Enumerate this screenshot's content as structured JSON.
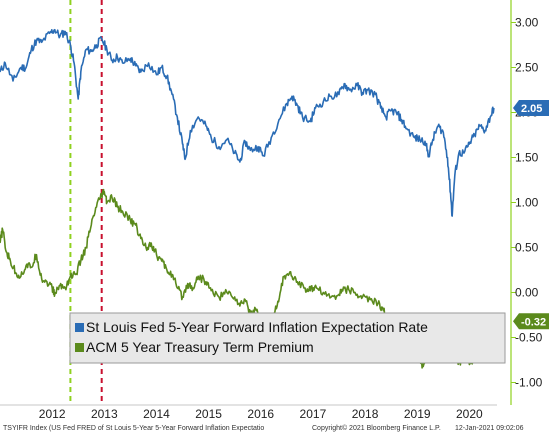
{
  "chart_data": {
    "type": "line",
    "title": "",
    "xlabel": "",
    "ylabel": "",
    "x_ticks": [
      "2012",
      "2013",
      "2014",
      "2015",
      "2016",
      "2017",
      "2018",
      "2019",
      "2020"
    ],
    "x_range": [
      2011.5,
      2021.03
    ],
    "ylim": [
      -1.25,
      3.25
    ],
    "y_ticks": [
      3.0,
      2.5,
      2.0,
      1.5,
      1.0,
      0.5,
      0.0,
      -0.5,
      -1.0
    ],
    "y_tick_labels": [
      "3.00",
      "2.50",
      "2.00",
      "1.50",
      "1.00",
      "0.50",
      "0.00",
      "-0.50",
      "-1.00"
    ],
    "y_axis_side": "right",
    "grid": false,
    "legend_position": "bottom-left",
    "vertical_markers": [
      {
        "x": 2012.85,
        "color": "#8fd11f",
        "style": "dashed"
      },
      {
        "x": 2013.45,
        "color": "#c8102e",
        "style": "dashed"
      }
    ],
    "series": [
      {
        "name": "St Louis Fed 5-Year Forward Inflation Expectation Rate",
        "color": "#2a6cb5",
        "last_value_label": "2.05",
        "points": [
          [
            2011.5,
            2.45
          ],
          [
            2011.6,
            2.55
          ],
          [
            2011.75,
            2.35
          ],
          [
            2011.9,
            2.5
          ],
          [
            2012.0,
            2.5
          ],
          [
            2012.1,
            2.7
          ],
          [
            2012.2,
            2.8
          ],
          [
            2012.3,
            2.78
          ],
          [
            2012.45,
            2.88
          ],
          [
            2012.55,
            2.92
          ],
          [
            2012.65,
            2.85
          ],
          [
            2012.75,
            2.9
          ],
          [
            2012.85,
            2.75
          ],
          [
            2012.92,
            2.55
          ],
          [
            2013.0,
            2.15
          ],
          [
            2013.05,
            2.45
          ],
          [
            2013.15,
            2.7
          ],
          [
            2013.25,
            2.68
          ],
          [
            2013.35,
            2.75
          ],
          [
            2013.45,
            2.82
          ],
          [
            2013.55,
            2.7
          ],
          [
            2013.65,
            2.58
          ],
          [
            2013.75,
            2.62
          ],
          [
            2013.85,
            2.55
          ],
          [
            2014.0,
            2.6
          ],
          [
            2014.1,
            2.52
          ],
          [
            2014.2,
            2.45
          ],
          [
            2014.35,
            2.55
          ],
          [
            2014.5,
            2.42
          ],
          [
            2014.6,
            2.5
          ],
          [
            2014.7,
            2.4
          ],
          [
            2014.8,
            2.2
          ],
          [
            2014.9,
            1.95
          ],
          [
            2015.0,
            1.65
          ],
          [
            2015.05,
            1.48
          ],
          [
            2015.15,
            1.8
          ],
          [
            2015.3,
            1.95
          ],
          [
            2015.45,
            1.85
          ],
          [
            2015.55,
            1.72
          ],
          [
            2015.7,
            1.62
          ],
          [
            2015.85,
            1.7
          ],
          [
            2016.0,
            1.55
          ],
          [
            2016.1,
            1.45
          ],
          [
            2016.2,
            1.68
          ],
          [
            2016.3,
            1.58
          ],
          [
            2016.45,
            1.62
          ],
          [
            2016.55,
            1.52
          ],
          [
            2016.7,
            1.72
          ],
          [
            2016.85,
            1.92
          ],
          [
            2017.0,
            2.1
          ],
          [
            2017.1,
            2.18
          ],
          [
            2017.2,
            2.08
          ],
          [
            2017.3,
            1.95
          ],
          [
            2017.45,
            1.9
          ],
          [
            2017.55,
            2.05
          ],
          [
            2017.7,
            2.12
          ],
          [
            2017.85,
            2.18
          ],
          [
            2018.0,
            2.2
          ],
          [
            2018.1,
            2.32
          ],
          [
            2018.2,
            2.25
          ],
          [
            2018.35,
            2.3
          ],
          [
            2018.45,
            2.22
          ],
          [
            2018.55,
            2.25
          ],
          [
            2018.7,
            2.2
          ],
          [
            2018.8,
            2.05
          ],
          [
            2018.9,
            1.95
          ],
          [
            2019.0,
            2.02
          ],
          [
            2019.1,
            2.0
          ],
          [
            2019.2,
            1.92
          ],
          [
            2019.3,
            1.82
          ],
          [
            2019.45,
            1.72
          ],
          [
            2019.55,
            1.7
          ],
          [
            2019.65,
            1.68
          ],
          [
            2019.72,
            1.52
          ],
          [
            2019.8,
            1.7
          ],
          [
            2019.9,
            1.85
          ],
          [
            2020.0,
            1.78
          ],
          [
            2020.08,
            1.5
          ],
          [
            2020.14,
            1.1
          ],
          [
            2020.17,
            0.85
          ],
          [
            2020.22,
            1.3
          ],
          [
            2020.3,
            1.55
          ],
          [
            2020.4,
            1.55
          ],
          [
            2020.5,
            1.65
          ],
          [
            2020.6,
            1.75
          ],
          [
            2020.7,
            1.85
          ],
          [
            2020.8,
            1.8
          ],
          [
            2020.9,
            1.95
          ],
          [
            2020.97,
            2.05
          ]
        ]
      },
      {
        "name": "ACM 5 Year Treasury Term Premium",
        "color": "#5b8a1c",
        "last_value_label": "-0.32",
        "points": [
          [
            2011.5,
            0.55
          ],
          [
            2011.55,
            0.7
          ],
          [
            2011.62,
            0.45
          ],
          [
            2011.7,
            0.35
          ],
          [
            2011.8,
            0.22
          ],
          [
            2011.9,
            0.18
          ],
          [
            2012.0,
            0.3
          ],
          [
            2012.1,
            0.28
          ],
          [
            2012.2,
            0.42
          ],
          [
            2012.3,
            0.15
          ],
          [
            2012.4,
            0.12
          ],
          [
            2012.5,
            0.05
          ],
          [
            2012.55,
            -0.02
          ],
          [
            2012.65,
            0.08
          ],
          [
            2012.75,
            0.05
          ],
          [
            2012.85,
            0.18
          ],
          [
            2012.95,
            0.2
          ],
          [
            2013.05,
            0.35
          ],
          [
            2013.15,
            0.5
          ],
          [
            2013.25,
            0.75
          ],
          [
            2013.35,
            0.95
          ],
          [
            2013.45,
            1.08
          ],
          [
            2013.5,
            1.12
          ],
          [
            2013.55,
            1.0
          ],
          [
            2013.65,
            1.05
          ],
          [
            2013.75,
            0.95
          ],
          [
            2013.85,
            0.9
          ],
          [
            2014.0,
            0.8
          ],
          [
            2014.1,
            0.75
          ],
          [
            2014.2,
            0.6
          ],
          [
            2014.3,
            0.5
          ],
          [
            2014.4,
            0.55
          ],
          [
            2014.5,
            0.42
          ],
          [
            2014.6,
            0.35
          ],
          [
            2014.7,
            0.25
          ],
          [
            2014.8,
            0.2
          ],
          [
            2014.9,
            0.05
          ],
          [
            2015.0,
            -0.05
          ],
          [
            2015.1,
            0.1
          ],
          [
            2015.2,
            0.05
          ],
          [
            2015.3,
            0.18
          ],
          [
            2015.45,
            0.12
          ],
          [
            2015.55,
            0.02
          ],
          [
            2015.7,
            -0.05
          ],
          [
            2015.85,
            0.0
          ],
          [
            2016.0,
            -0.05
          ],
          [
            2016.1,
            -0.15
          ],
          [
            2016.2,
            -0.08
          ],
          [
            2016.3,
            -0.22
          ],
          [
            2016.4,
            -0.18
          ],
          [
            2016.5,
            -0.32
          ],
          [
            2016.6,
            -0.28
          ],
          [
            2016.7,
            -0.3
          ],
          [
            2016.8,
            -0.18
          ],
          [
            2016.9,
            0.1
          ],
          [
            2017.0,
            0.2
          ],
          [
            2017.1,
            0.18
          ],
          [
            2017.2,
            0.12
          ],
          [
            2017.35,
            0.05
          ],
          [
            2017.45,
            0.02
          ],
          [
            2017.55,
            0.08
          ],
          [
            2017.7,
            0.0
          ],
          [
            2017.85,
            -0.05
          ],
          [
            2018.0,
            -0.02
          ],
          [
            2018.1,
            0.05
          ],
          [
            2018.2,
            0.02
          ],
          [
            2018.35,
            -0.02
          ],
          [
            2018.45,
            -0.05
          ],
          [
            2018.6,
            -0.08
          ],
          [
            2018.75,
            -0.12
          ],
          [
            2018.85,
            -0.2
          ],
          [
            2018.95,
            -0.32
          ],
          [
            2019.05,
            -0.35
          ],
          [
            2019.15,
            -0.42
          ],
          [
            2019.25,
            -0.45
          ],
          [
            2019.35,
            -0.52
          ],
          [
            2019.45,
            -0.58
          ],
          [
            2019.55,
            -0.72
          ],
          [
            2019.6,
            -0.82
          ],
          [
            2019.65,
            -0.78
          ],
          [
            2019.72,
            -0.6
          ],
          [
            2019.8,
            -0.7
          ],
          [
            2019.9,
            -0.75
          ],
          [
            2020.0,
            -0.62
          ],
          [
            2020.1,
            -0.75
          ],
          [
            2020.2,
            -0.7
          ],
          [
            2020.3,
            -0.78
          ],
          [
            2020.4,
            -0.72
          ],
          [
            2020.5,
            -0.8
          ],
          [
            2020.6,
            -0.72
          ],
          [
            2020.7,
            -0.75
          ],
          [
            2020.8,
            -0.65
          ],
          [
            2020.9,
            -0.55
          ],
          [
            2020.97,
            -0.32
          ]
        ]
      }
    ]
  },
  "footer": {
    "left": "TSYIFR Index (US Fed FRED of St Louis 5-Year 5-Year Forward Inflation Expectatio",
    "center": "Copyright© 2021 Bloomberg Finance L.P.",
    "right": "12-Jan-2021 09:02:06"
  },
  "colors": {
    "blue_series": "#2a6cb5",
    "green_series": "#5b8a1c",
    "marker_green": "#8fd11f",
    "marker_red": "#c8102e",
    "axis_line": "#8fd11f",
    "legend_border": "#9a9a9a",
    "legend_bg": "#e8e8e8"
  }
}
